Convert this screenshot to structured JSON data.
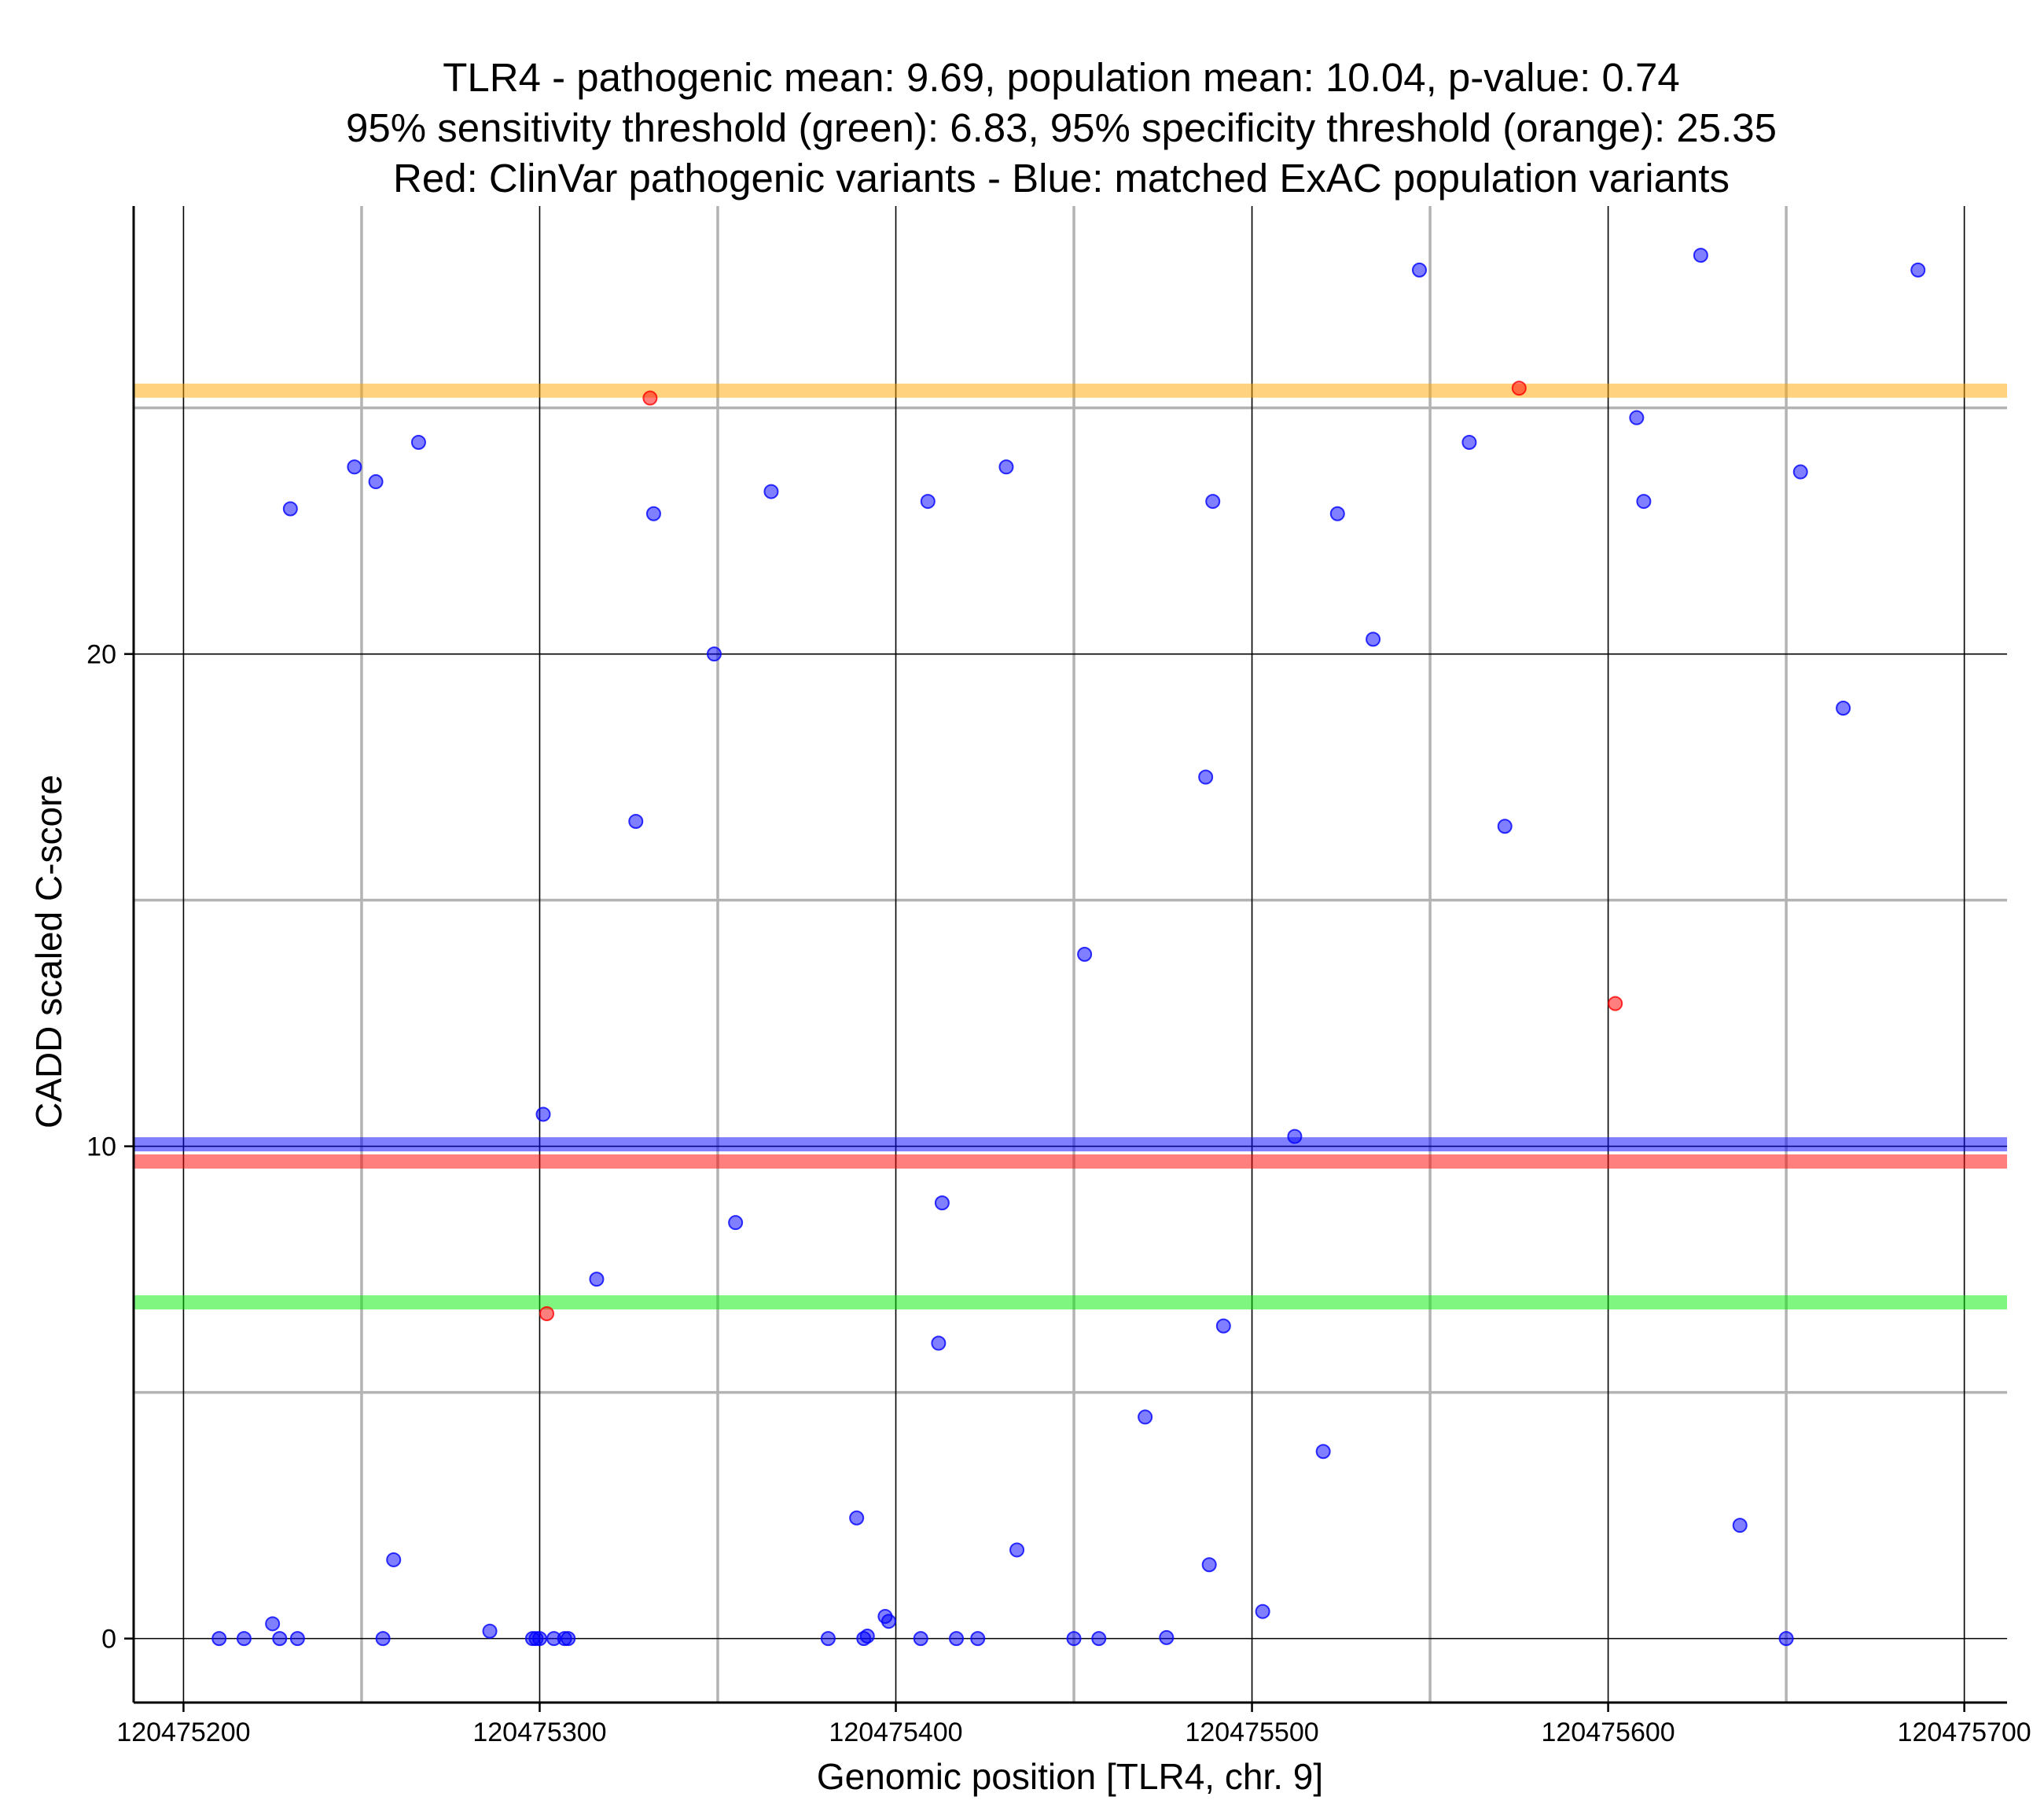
{
  "chart_data": {
    "type": "scatter",
    "title_lines": [
      "TLR4 - pathogenic mean: 9.69, population mean: 10.04, p-value: 0.74",
      "95% sensitivity threshold (green): 6.83, 95% specificity threshold (orange): 25.35",
      "Red: ClinVar pathogenic variants - Blue: matched ExAC population variants"
    ],
    "xlabel": "Genomic position [TLR4, chr. 9]",
    "ylabel": "CADD scaled C-score",
    "xlim": [
      120475186,
      120475712
    ],
    "ylim": [
      -1.3,
      29.1
    ],
    "x_ticks": [
      120475200,
      120475300,
      120475400,
      120475500,
      120475600,
      120475700
    ],
    "x_tick_labels": [
      "120475200",
      "120475300",
      "120475400",
      "120475500",
      "120475600",
      "120475700"
    ],
    "y_ticks": [
      0,
      10,
      20
    ],
    "y_tick_labels": [
      "0",
      "10",
      "20"
    ],
    "major_grid_x": [
      120475200,
      120475300,
      120475400,
      120475500,
      120475600,
      120475700
    ],
    "minor_grid_x": [
      120475250,
      120475350,
      120475450,
      120475550,
      120475650
    ],
    "major_grid_y": [
      0,
      10,
      20
    ],
    "minor_grid_y": [
      5,
      15,
      25
    ],
    "hlines": [
      {
        "name": "specificity-threshold",
        "y": 25.35,
        "color": "#ffa500"
      },
      {
        "name": "population-mean",
        "y": 10.04,
        "color": "#0000ff"
      },
      {
        "name": "pathogenic-mean",
        "y": 9.69,
        "color": "#ff0000"
      },
      {
        "name": "sensitivity-threshold",
        "y": 6.83,
        "color": "#00ee00"
      }
    ],
    "series": [
      {
        "name": "ClinVar pathogenic variants",
        "color": "#ff0000",
        "points": [
          [
            120475302,
            6.6
          ],
          [
            120475331,
            25.2
          ],
          [
            120475575,
            25.4
          ],
          [
            120475602,
            12.9
          ]
        ]
      },
      {
        "name": "matched ExAC population variants",
        "color": "#0000ff",
        "points": [
          [
            120475210,
            0.0
          ],
          [
            120475217,
            0.0
          ],
          [
            120475225,
            0.3
          ],
          [
            120475227,
            0.0
          ],
          [
            120475230,
            22.95
          ],
          [
            120475232,
            0.0
          ],
          [
            120475248,
            23.8
          ],
          [
            120475254,
            23.5
          ],
          [
            120475256,
            0.0
          ],
          [
            120475259,
            1.6
          ],
          [
            120475266,
            24.3
          ],
          [
            120475286,
            0.15
          ],
          [
            120475298,
            0.0
          ],
          [
            120475299,
            0.0
          ],
          [
            120475300,
            0.0
          ],
          [
            120475301,
            10.65
          ],
          [
            120475304,
            0.0
          ],
          [
            120475307,
            0.0
          ],
          [
            120475308,
            0.0
          ],
          [
            120475316,
            7.3
          ],
          [
            120475327,
            16.6
          ],
          [
            120475332,
            22.85
          ],
          [
            120475349,
            20.0
          ],
          [
            120475355,
            8.45
          ],
          [
            120475365,
            23.3
          ],
          [
            120475381,
            0.0
          ],
          [
            120475389,
            2.45
          ],
          [
            120475391,
            0.0
          ],
          [
            120475392,
            0.05
          ],
          [
            120475397,
            0.45
          ],
          [
            120475398,
            0.35
          ],
          [
            120475407,
            0.0
          ],
          [
            120475409,
            23.1
          ],
          [
            120475412,
            6.0
          ],
          [
            120475413,
            8.85
          ],
          [
            120475417,
            0.0
          ],
          [
            120475423,
            0.0
          ],
          [
            120475431,
            23.8
          ],
          [
            120475434,
            1.8
          ],
          [
            120475450,
            0.0
          ],
          [
            120475453,
            13.9
          ],
          [
            120475457,
            0.0
          ],
          [
            120475470,
            4.5
          ],
          [
            120475476,
            0.02
          ],
          [
            120475487,
            17.5
          ],
          [
            120475488,
            1.5
          ],
          [
            120475489,
            23.1
          ],
          [
            120475492,
            6.35
          ],
          [
            120475503,
            0.55
          ],
          [
            120475512,
            10.2
          ],
          [
            120475520,
            3.8
          ],
          [
            120475524,
            22.85
          ],
          [
            120475534,
            20.3
          ],
          [
            120475547,
            27.8
          ],
          [
            120475561,
            24.3
          ],
          [
            120475571,
            16.5
          ],
          [
            120475608,
            24.8
          ],
          [
            120475610,
            23.1
          ],
          [
            120475626,
            28.1
          ],
          [
            120475637,
            2.3
          ],
          [
            120475650,
            0.0
          ],
          [
            120475654,
            23.7
          ],
          [
            120475666,
            18.9
          ],
          [
            120475687,
            27.8
          ]
        ]
      }
    ]
  }
}
